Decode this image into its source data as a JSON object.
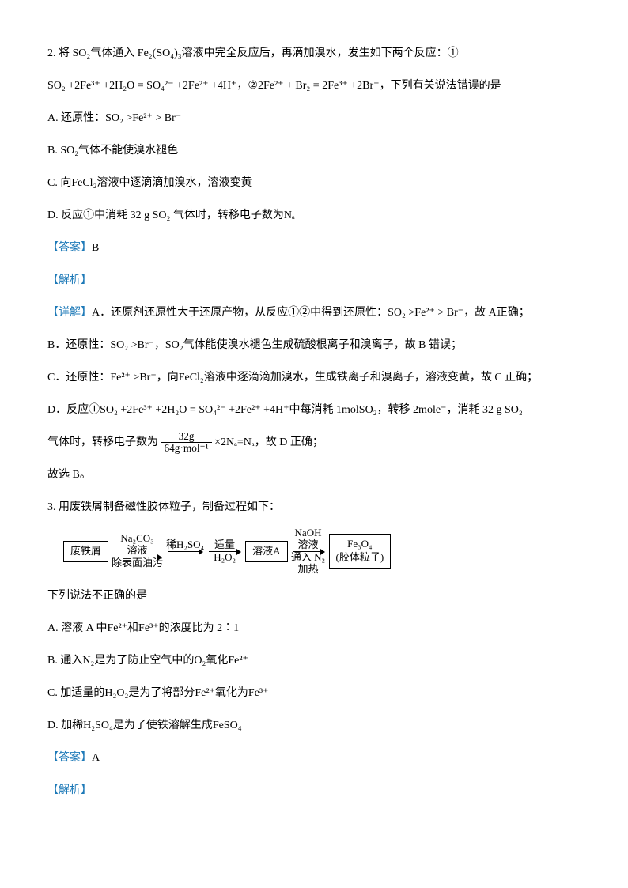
{
  "q2": {
    "stem1": "2. 将 SO₂气体通入 Fe₂(SO₄)₃溶液中完全反应后，再滴加溴水，发生如下两个反应：①",
    "stem2": "SO₂ +2Fe³⁺ +2H₂O = SO₄²⁻ +2Fe²⁺ +4H⁺，②2Fe²⁺ + Br₂ = 2Fe³⁺ +2Br⁻，下列有关说法错误的是",
    "optA": "A. 还原性：SO₂ >Fe²⁺ > Br⁻",
    "optB": "B. SO₂气体不能使溴水褪色",
    "optC": "C. 向FeCl₂溶液中逐滴滴加溴水，溶液变黄",
    "optD": "D. 反应①中消耗 32 g SO₂ 气体时，转移电子数为Nₐ",
    "answerLabel": "【答案】",
    "answer": "B",
    "analysisLabel": "【解析】",
    "detailLabel": "【详解】",
    "detA": "A．还原剂还原性大于还原产物，从反应①②中得到还原性：SO₂ >Fe²⁺ > Br⁻，故 A正确；",
    "detB": "B．还原性：SO₂ >Br⁻，SO₂气体能使溴水褪色生成硫酸根离子和溴离子，故 B 错误；",
    "detC": "C．还原性：Fe²⁺ >Br⁻，向FeCl₂溶液中逐滴滴加溴水，生成铁离子和溴离子，溶液变黄，故 C 正确；",
    "detD1": "D．反应①SO₂ +2Fe³⁺ +2H₂O = SO₄²⁻ +2Fe²⁺ +4H⁺中每消耗 1molSO₂，转移 2mole⁻，消耗 32 g SO₂",
    "detD2a": "气体时，转移电子数为",
    "fracNum": "32g",
    "fracDen": "64g·mol⁻¹",
    "detD2b": "×2Nₐ=Nₐ，故 D 正确；",
    "conclude": "故选 B。"
  },
  "q3": {
    "stem": "3. 用废铁屑制备磁性胶体粒子，制备过程如下：",
    "box1a": "废铁屑",
    "arr1top": "Na₂CO₃",
    "arr1mid": "溶液",
    "arr1bot": "除表面油污",
    "arr2top": "稀H₂SO₄",
    "arr3top": "适量",
    "arr3bot": "H₂O₂",
    "box2": "溶液A",
    "arr4top": "NaOH",
    "arr4mid": "溶液",
    "arr4bot1": "通入 N₂",
    "arr4bot2": "加热",
    "box3a": "Fe₃O₄",
    "box3b": "(胶体粒子)",
    "postStem": "下列说法不正确的是",
    "optA": "A. 溶液 A 中Fe²⁺和Fe³⁺的浓度比为 2∶1",
    "optB": "B. 通入N₂是为了防止空气中的O₂氧化Fe²⁺",
    "optC": "C. 加适量的H₂O₂是为了将部分Fe²⁺氧化为Fe³⁺",
    "optD": "D. 加稀H₂SO₄是为了使铁溶解生成FeSO₄",
    "answerLabel": "【答案】",
    "answer": "A",
    "analysisLabel": "【解析】"
  }
}
